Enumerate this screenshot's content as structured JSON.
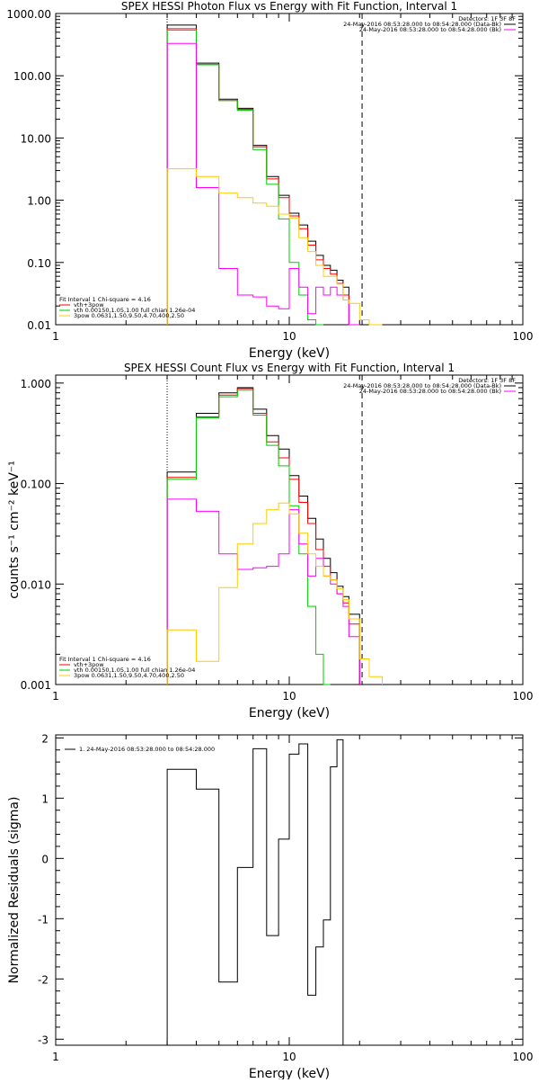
{
  "panels": [
    {
      "title": "SPEX HESSI Photon Flux vs Energy with Fit Function, Interval 1",
      "xlabel": "Energy (keV)",
      "ylabel": "",
      "x_ticks": [
        "1",
        "10",
        "100"
      ],
      "y_ticks": [
        "1000.00",
        "100.00",
        "10.00",
        "1.00",
        "0.10",
        "0.01"
      ],
      "legend_top": [
        "Detectors: 1F 3F 8F",
        "24-May-2016 08:53:28.000 to 08:54:28.000 (Data-Bk)",
        "24-May-2016 08:53:28.000 to 08:54:28.000 (Bk)"
      ],
      "legend_bottom": [
        "Fit Interval 1    Chi-square = 4.16",
        "vth+3pow",
        "vth 0.00150,1.05,1.00  full chian 1.26e-04",
        "3pow 0.0631,1.50,9.50,4.70,400,2.50"
      ]
    },
    {
      "title": "SPEX HESSI Count Flux vs Energy with Fit Function, Interval 1",
      "xlabel": "Energy (keV)",
      "ylabel": "counts s⁻¹ cm⁻² keV⁻¹",
      "x_ticks": [
        "1",
        "10",
        "100"
      ],
      "y_ticks": [
        "1.000",
        "0.100",
        "0.010",
        "0.001"
      ],
      "legend_top": [
        "Detectors: 1F 3F 8F",
        "24-May-2016 08:53:28.000 to 08:54:28.000 (Data-Bk)",
        "24-May-2016 08:53:28.000 to 08:54:28.000 (Bk)"
      ],
      "legend_bottom": [
        "Fit Interval 1    Chi-square = 4.16",
        "vth+3pow",
        "vth 0.00150,1.05,1.00  full chian 1.26e-04",
        "3pow 0.0631,1.50,9.50,4.70,400,2.50"
      ]
    },
    {
      "title": "",
      "xlabel": "Energy (keV)",
      "ylabel": "Normalized Residuals (sigma)",
      "x_ticks": [
        "1",
        "10",
        "100"
      ],
      "y_ticks": [
        "2",
        "1",
        "0",
        "-1",
        "-2",
        "-3"
      ],
      "legend_top": [
        "1. 24-May-2016 08:53:28.000 to 08:54:28.000"
      ],
      "legend_bottom": []
    }
  ],
  "chart_data": [
    {
      "type": "line",
      "title": "SPEX HESSI Photon Flux vs Energy with Fit Function, Interval 1",
      "xlabel": "Energy (keV)",
      "xscale": "log",
      "yscale": "log",
      "xlim": [
        1,
        100
      ],
      "ylim": [
        0.01,
        1000
      ],
      "grid": false,
      "legend": "top-right and bottom-left",
      "vlines": [
        {
          "x": 3,
          "style": "dotted"
        },
        {
          "x": 20.5,
          "style": "dashed"
        }
      ],
      "bin_edges": [
        3,
        4,
        5,
        6,
        7,
        8,
        9,
        10,
        11,
        12,
        13,
        14,
        15,
        16,
        17,
        18,
        20,
        22,
        25
      ],
      "series": [
        {
          "name": "Data-Bk",
          "color": "#000000",
          "values": [
            650,
            160,
            42,
            30,
            7.6,
            2.4,
            1.2,
            0.62,
            0.4,
            0.22,
            0.13,
            0.09,
            0.075,
            0.052,
            0.04,
            0.0065,
            null,
            null
          ]
        },
        {
          "name": "",
          "color": "#ff0000",
          "values": [
            570,
            152,
            40,
            29,
            7.2,
            2.2,
            1.1,
            0.56,
            0.35,
            0.19,
            0.11,
            0.08,
            0.065,
            0.046,
            0.03,
            0.006,
            null,
            null
          ]
        },
        {
          "name": "",
          "color": "#00cc00",
          "values": [
            540,
            150,
            40,
            28,
            6.5,
            1.8,
            0.5,
            0.1,
            0.03,
            0.012,
            0.005,
            null,
            null,
            null,
            null,
            null,
            null,
            null
          ]
        },
        {
          "name": "Bk",
          "color": "#ff00ff",
          "values": [
            330,
            1.6,
            0.08,
            0.03,
            0.028,
            0.02,
            0.018,
            0.08,
            0.04,
            0.015,
            0.04,
            0.03,
            0.04,
            0.03,
            0.025,
            0.006,
            null,
            null
          ]
        },
        {
          "name": "",
          "color": "#ffcc00",
          "values": [
            3.2,
            2.4,
            1.3,
            1.1,
            0.9,
            0.8,
            0.6,
            0.52,
            0.25,
            0.15,
            0.09,
            0.06,
            0.06,
            0.045,
            0.025,
            0.022,
            0.012,
            0.009
          ]
        }
      ]
    },
    {
      "type": "line",
      "title": "SPEX HESSI Count Flux vs Energy with Fit Function, Interval 1",
      "xlabel": "Energy (keV)",
      "xscale": "log",
      "yscale": "log",
      "xlim": [
        1,
        100
      ],
      "ylim": [
        0.001,
        1.2
      ],
      "grid": false,
      "legend": "top-right and bottom-left",
      "vlines": [
        {
          "x": 3,
          "style": "dotted"
        },
        {
          "x": 20.5,
          "style": "dashed"
        }
      ],
      "bin_edges": [
        3,
        4,
        5,
        6,
        7,
        8,
        9,
        10,
        11,
        12,
        13,
        14,
        15,
        16,
        17,
        18,
        20,
        22,
        25
      ],
      "series": [
        {
          "name": "Data-Bk",
          "color": "#000000",
          "values": [
            0.13,
            0.5,
            0.8,
            0.9,
            0.55,
            0.3,
            0.22,
            0.12,
            0.075,
            0.045,
            0.028,
            0.018,
            0.013,
            0.0095,
            0.0075,
            0.005,
            null,
            null
          ]
        },
        {
          "name": "",
          "color": "#ff0000",
          "values": [
            0.115,
            0.46,
            0.76,
            0.88,
            0.5,
            0.26,
            0.18,
            0.11,
            0.065,
            0.04,
            0.022,
            0.015,
            0.011,
            0.008,
            0.0065,
            0.004,
            null,
            null
          ]
        },
        {
          "name": "",
          "color": "#00cc00",
          "values": [
            0.11,
            0.45,
            0.73,
            0.85,
            0.48,
            0.24,
            0.15,
            0.06,
            0.02,
            0.006,
            0.002,
            0.001,
            null,
            null,
            null,
            null,
            null,
            null
          ]
        },
        {
          "name": "Bk",
          "color": "#ff00ff",
          "values": [
            0.07,
            0.053,
            0.02,
            0.014,
            0.0145,
            0.015,
            0.02,
            0.055,
            0.025,
            0.012,
            0.018,
            0.012,
            0.01,
            0.008,
            0.006,
            0.003,
            null,
            null
          ]
        },
        {
          "name": "",
          "color": "#ffcc00",
          "values": [
            0.0035,
            0.0017,
            0.0092,
            0.025,
            0.04,
            0.055,
            0.064,
            0.05,
            0.032,
            0.02,
            0.015,
            0.012,
            0.011,
            0.009,
            0.007,
            0.0045,
            0.0018,
            0.0012
          ]
        }
      ]
    },
    {
      "type": "line",
      "title": "",
      "xlabel": "Energy (keV)",
      "ylabel": "Normalized Residuals (sigma)",
      "xscale": "log",
      "yscale": "linear",
      "xlim": [
        1,
        100
      ],
      "ylim": [
        -3.1,
        2.05
      ],
      "grid": false,
      "legend": "top-left",
      "bin_edges": [
        3,
        4,
        5,
        6,
        7,
        8,
        9,
        10,
        11,
        12,
        13,
        14,
        15,
        16,
        17,
        18,
        20
      ],
      "series": [
        {
          "name": "1. 24-May-2016 08:53:28.000 to 08:54:28.000",
          "color": "#000000",
          "values": [
            1.48,
            1.15,
            -2.05,
            -0.15,
            1.82,
            -1.28,
            0.32,
            1.73,
            1.9,
            -2.27,
            -1.47,
            -1.02,
            1.52,
            1.97
          ]
        }
      ]
    }
  ]
}
